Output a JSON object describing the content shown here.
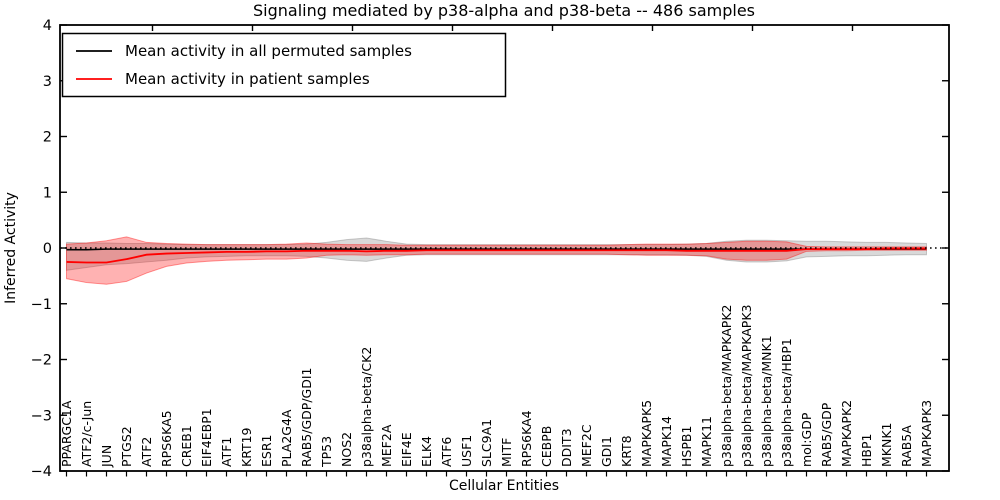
{
  "figure": {
    "title": "Signaling mediated by p38-alpha and p38-beta -- 486 samples",
    "xlabel": "Cellular Entities",
    "ylabel": "Inferred Activity"
  },
  "legend": {
    "entries": [
      {
        "label": "Mean activity in all permuted samples",
        "color": "#000000"
      },
      {
        "label": "Mean activity in patient samples",
        "color": "#ff0000"
      }
    ]
  },
  "chart_data": {
    "type": "line",
    "title": "Signaling mediated by p38-alpha and p38-beta -- 486 samples",
    "xlabel": "Cellular Entities",
    "ylabel": "Inferred Activity",
    "ylim": [
      -4,
      4
    ],
    "yticks": [
      4,
      3,
      2,
      1,
      0,
      -1,
      -2,
      -3,
      -4
    ],
    "grid": false,
    "legend_position": "upper left",
    "zero_reference_line": 0,
    "x_major_tick_step": 5,
    "categories": [
      "PPARGC1A",
      "ATF2/c-Jun",
      "JUN",
      "PTGS2",
      "ATF2",
      "RPS6KA5",
      "CREB1",
      "EIF4EBP1",
      "ATF1",
      "KRT19",
      "ESR1",
      "PLA2G4A",
      "RAB5/GDP/GDI1",
      "TP53",
      "NOS2",
      "p38alpha-beta/CK2",
      "MEF2A",
      "EIF4E",
      "ELK4",
      "ATF6",
      "USF1",
      "SLC9A1",
      "MITF",
      "RPS6KA4",
      "CEBPB",
      "DDIT3",
      "MEF2C",
      "GDI1",
      "KRT8",
      "MAPKAPK5",
      "MAPK14",
      "HSPB1",
      "MAPK11",
      "p38alpha-beta/MAPKAPK2",
      "p38alpha-beta/MAPKAPK3",
      "p38alpha-beta/MNK1",
      "p38alpha-beta/HBP1",
      "mol:GDP",
      "RAB5/GDP",
      "MAPKAPK2",
      "HBP1",
      "MKNK1",
      "RAB5A",
      "MAPKAPK3"
    ],
    "series": [
      {
        "name": "Mean activity in all permuted samples",
        "color": "#000000",
        "style": "solid",
        "values": [
          -0.03,
          -0.03,
          -0.02,
          -0.02,
          -0.02,
          -0.02,
          -0.02,
          -0.02,
          -0.02,
          -0.02,
          -0.02,
          -0.02,
          -0.02,
          -0.02,
          -0.02,
          -0.02,
          -0.02,
          -0.02,
          -0.02,
          -0.02,
          -0.02,
          -0.02,
          -0.02,
          -0.02,
          -0.02,
          -0.02,
          -0.02,
          -0.02,
          -0.02,
          -0.02,
          -0.02,
          -0.02,
          -0.02,
          -0.02,
          -0.02,
          -0.02,
          -0.02,
          -0.02,
          -0.02,
          -0.02,
          -0.02,
          -0.02,
          -0.02,
          -0.02
        ]
      },
      {
        "name": "Mean activity in patient samples",
        "color": "#ff0000",
        "style": "solid",
        "values": [
          -0.25,
          -0.26,
          -0.26,
          -0.2,
          -0.12,
          -0.1,
          -0.09,
          -0.08,
          -0.07,
          -0.07,
          -0.06,
          -0.06,
          -0.05,
          -0.05,
          -0.05,
          -0.06,
          -0.05,
          -0.05,
          -0.04,
          -0.04,
          -0.04,
          -0.04,
          -0.04,
          -0.04,
          -0.04,
          -0.04,
          -0.04,
          -0.04,
          -0.04,
          -0.04,
          -0.04,
          -0.05,
          -0.05,
          -0.05,
          -0.05,
          -0.05,
          -0.05,
          -0.02,
          -0.02,
          -0.02,
          -0.02,
          -0.01,
          -0.01,
          -0.01
        ]
      }
    ],
    "bands": [
      {
        "name": "permuted-samples-range",
        "color": "#808080",
        "opacity": 0.3,
        "upper": [
          0.1,
          0.09,
          0.09,
          0.08,
          0.08,
          0.07,
          0.06,
          0.06,
          0.06,
          0.06,
          0.06,
          0.06,
          0.07,
          0.1,
          0.15,
          0.18,
          0.12,
          0.07,
          0.06,
          0.06,
          0.06,
          0.06,
          0.06,
          0.06,
          0.06,
          0.06,
          0.06,
          0.06,
          0.06,
          0.06,
          0.06,
          0.07,
          0.08,
          0.12,
          0.14,
          0.14,
          0.13,
          0.12,
          0.12,
          0.11,
          0.1,
          0.1,
          0.09,
          0.08
        ],
        "lower": [
          -0.4,
          -0.35,
          -0.3,
          -0.28,
          -0.25,
          -0.22,
          -0.18,
          -0.16,
          -0.15,
          -0.14,
          -0.14,
          -0.14,
          -0.15,
          -0.18,
          -0.22,
          -0.24,
          -0.18,
          -0.13,
          -0.12,
          -0.12,
          -0.12,
          -0.12,
          -0.12,
          -0.12,
          -0.12,
          -0.12,
          -0.12,
          -0.12,
          -0.12,
          -0.12,
          -0.12,
          -0.13,
          -0.15,
          -0.22,
          -0.25,
          -0.25,
          -0.23,
          -0.16,
          -0.15,
          -0.14,
          -0.14,
          -0.13,
          -0.12,
          -0.12
        ]
      },
      {
        "name": "patient-samples-range",
        "color": "#ff0000",
        "opacity": 0.3,
        "upper": [
          0.07,
          0.09,
          0.13,
          0.2,
          0.1,
          0.08,
          0.07,
          0.06,
          0.06,
          0.06,
          0.06,
          0.07,
          0.09,
          0.07,
          0.06,
          0.06,
          0.06,
          0.05,
          0.05,
          0.05,
          0.05,
          0.05,
          0.05,
          0.05,
          0.05,
          0.05,
          0.05,
          0.05,
          0.06,
          0.07,
          0.07,
          0.07,
          0.08,
          0.1,
          0.12,
          0.12,
          0.11,
          0.03,
          0.02,
          0.02,
          0.02,
          0.02,
          0.02,
          0.02
        ],
        "lower": [
          -0.55,
          -0.62,
          -0.65,
          -0.6,
          -0.45,
          -0.33,
          -0.27,
          -0.24,
          -0.22,
          -0.21,
          -0.2,
          -0.2,
          -0.18,
          -0.13,
          -0.12,
          -0.13,
          -0.12,
          -0.12,
          -0.11,
          -0.11,
          -0.11,
          -0.11,
          -0.11,
          -0.11,
          -0.11,
          -0.11,
          -0.11,
          -0.11,
          -0.12,
          -0.13,
          -0.13,
          -0.13,
          -0.14,
          -0.2,
          -0.22,
          -0.22,
          -0.2,
          -0.06,
          -0.05,
          -0.05,
          -0.04,
          -0.04,
          -0.04,
          -0.04
        ]
      }
    ]
  }
}
